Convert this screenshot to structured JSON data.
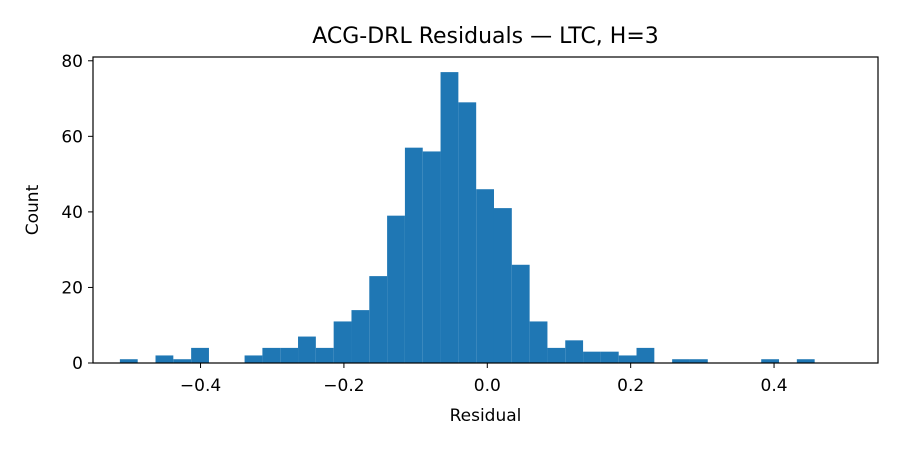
{
  "chart_data": {
    "type": "histogram",
    "title": "ACG-DRL Residuals — LTC, H=3",
    "xlabel": "Residual",
    "ylabel": "Count",
    "xlim": [
      -0.55,
      0.545
    ],
    "ylim": [
      0,
      81
    ],
    "bar_color": "#1f77b4",
    "bin_start": -0.5125,
    "bin_width": 0.02485,
    "counts": [
      1,
      0,
      2,
      1,
      4,
      0,
      0,
      2,
      4,
      4,
      7,
      4,
      11,
      14,
      23,
      39,
      57,
      56,
      77,
      69,
      46,
      41,
      26,
      11,
      4,
      6,
      3,
      3,
      2,
      4,
      0,
      1,
      1,
      0,
      0,
      0,
      1,
      0,
      1
    ],
    "xticks": [
      -0.4,
      -0.2,
      0.0,
      0.2,
      0.4
    ],
    "xtick_labels": [
      "−0.4",
      "−0.2",
      "0.0",
      "0.2",
      "0.4"
    ],
    "yticks": [
      0,
      20,
      40,
      60,
      80
    ],
    "ytick_labels": [
      "0",
      "20",
      "40",
      "60",
      "80"
    ]
  }
}
